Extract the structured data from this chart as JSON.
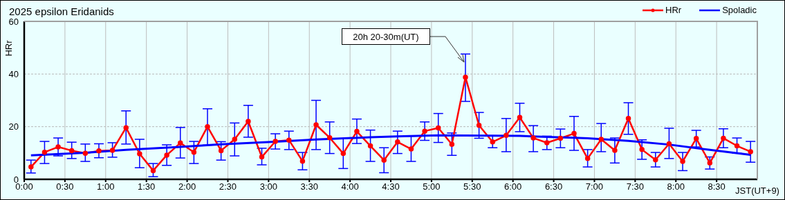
{
  "chart_data": {
    "type": "line",
    "title": "2025 epsilon Eridanids",
    "xlabel": "JST(UT+9)",
    "ylabel": "HRr",
    "x": [
      0.0833,
      0.25,
      0.4167,
      0.5833,
      0.75,
      0.9167,
      1.0833,
      1.25,
      1.4167,
      1.5833,
      1.75,
      1.9167,
      2.0833,
      2.25,
      2.4167,
      2.5833,
      2.75,
      2.9167,
      3.0833,
      3.25,
      3.4167,
      3.5833,
      3.75,
      3.9167,
      4.0833,
      4.25,
      4.4167,
      4.5833,
      4.75,
      4.9167,
      5.0833,
      5.25,
      5.4167,
      5.5833,
      5.75,
      5.9167,
      6.0833,
      6.25,
      6.4167,
      6.5833,
      6.75,
      6.9167,
      7.0833,
      7.25,
      7.4167,
      7.5833,
      7.75,
      7.9167,
      8.0833,
      8.25,
      8.4167,
      8.5833,
      8.75,
      8.9167
    ],
    "series": [
      {
        "name": "HRr",
        "color": "#ff0000",
        "marker": "circle",
        "values": [
          4.7,
          10.3,
          12.3,
          10.9,
          9.9,
          10.8,
          11.0,
          19.6,
          9.7,
          3.3,
          9.2,
          13.8,
          10.3,
          20.0,
          10.9,
          15.2,
          22.0,
          8.5,
          14.4,
          14.9,
          6.9,
          20.7,
          15.8,
          9.8,
          18.2,
          12.7,
          7.3,
          14.2,
          11.5,
          18.3,
          19.5,
          13.3,
          38.8,
          20.5,
          14.2,
          16.7,
          23.5,
          15.7,
          13.9,
          15.6,
          17.4,
          7.9,
          15.2,
          11.0,
          23.1,
          11.3,
          7.4,
          13.5,
          6.8,
          15.5,
          6.2,
          15.6,
          12.7,
          10.5
        ],
        "errors": [
          [
            2.4,
            7.3
          ],
          [
            6.0,
            14.4
          ],
          [
            8.9,
            15.7
          ],
          [
            7.9,
            14.1
          ],
          [
            6.8,
            13.4
          ],
          [
            8.2,
            13.5
          ],
          [
            8.4,
            13.9
          ],
          [
            13.4,
            26.0
          ],
          [
            4.4,
            15.2
          ],
          [
            1.0,
            6.0
          ],
          [
            5.3,
            13.1
          ],
          [
            8.1,
            19.7
          ],
          [
            6.0,
            14.4
          ],
          [
            13.0,
            26.8
          ],
          [
            7.3,
            14.3
          ],
          [
            8.9,
            21.4
          ],
          [
            16.0,
            28.1
          ],
          [
            5.5,
            11.8
          ],
          [
            11.5,
            17.3
          ],
          [
            11.3,
            18.3
          ],
          [
            3.6,
            10.2
          ],
          [
            11.3,
            30.0
          ],
          [
            9.8,
            21.8
          ],
          [
            4.1,
            15.5
          ],
          [
            13.6,
            22.9
          ],
          [
            6.8,
            18.7
          ],
          [
            2.5,
            12.0
          ],
          [
            9.8,
            18.3
          ],
          [
            6.8,
            16.4
          ],
          [
            14.8,
            21.8
          ],
          [
            14.0,
            25.0
          ],
          [
            9.1,
            17.6
          ],
          [
            29.6,
            47.6
          ],
          [
            15.6,
            25.4
          ],
          [
            12.0,
            16.6
          ],
          [
            10.5,
            23.1
          ],
          [
            18.1,
            28.9
          ],
          [
            10.5,
            20.4
          ],
          [
            11.3,
            16.4
          ],
          [
            12.0,
            19.1
          ],
          [
            11.0,
            23.9
          ],
          [
            4.7,
            11.3
          ],
          [
            10.5,
            21.2
          ],
          [
            6.2,
            15.7
          ],
          [
            17.1,
            29.1
          ],
          [
            7.6,
            15.0
          ],
          [
            4.7,
            10.2
          ],
          [
            7.9,
            19.4
          ],
          [
            3.3,
            10.2
          ],
          [
            12.3,
            18.6
          ],
          [
            3.9,
            8.5
          ],
          [
            12.0,
            19.2
          ],
          [
            9.9,
            15.7
          ],
          [
            6.5,
            14.4
          ]
        ]
      },
      {
        "name": "Spoladic",
        "color": "#0000ff",
        "marker": "none",
        "x": [
          0.0833,
          0.75,
          1.25,
          1.9167,
          2.4167,
          3.0833,
          3.5833,
          4.25,
          4.5833,
          5.0833,
          6.0833,
          6.4167,
          6.75,
          6.9167,
          7.4167,
          7.9167,
          8.4167,
          8.9167
        ],
        "values": [
          9.1,
          10.1,
          11.2,
          12.3,
          13.3,
          14.3,
          15.1,
          16.0,
          16.3,
          16.7,
          16.5,
          16.1,
          15.8,
          15.6,
          14.6,
          13.2,
          11.2,
          9.3
        ]
      }
    ],
    "xlim": [
      0,
      9
    ],
    "xticks": [
      {
        "value": 0,
        "label": "0:00"
      },
      {
        "value": 0.5,
        "label": "0:30"
      },
      {
        "value": 1,
        "label": "1:00"
      },
      {
        "value": 1.5,
        "label": "1:30"
      },
      {
        "value": 2,
        "label": "2:00"
      },
      {
        "value": 2.5,
        "label": "2:30"
      },
      {
        "value": 3,
        "label": "3:00"
      },
      {
        "value": 3.5,
        "label": "3:30"
      },
      {
        "value": 4,
        "label": "4:00"
      },
      {
        "value": 4.5,
        "label": "4:30"
      },
      {
        "value": 5,
        "label": "5:00"
      },
      {
        "value": 5.5,
        "label": "5:30"
      },
      {
        "value": 6,
        "label": "6:00"
      },
      {
        "value": 6.5,
        "label": "6:30"
      },
      {
        "value": 7,
        "label": "7:00"
      },
      {
        "value": 7.5,
        "label": "7:30"
      },
      {
        "value": 8,
        "label": "8:00"
      },
      {
        "value": 8.5,
        "label": "8:30"
      }
    ],
    "ylim": [
      0,
      60
    ],
    "yticks": [
      0,
      20,
      40,
      60
    ],
    "annotations": [
      {
        "text": "20h 20-30m(UT)",
        "x": 5.4167,
        "y": 44
      }
    ],
    "grid": true,
    "legend": "top right",
    "line_style": "solid"
  }
}
